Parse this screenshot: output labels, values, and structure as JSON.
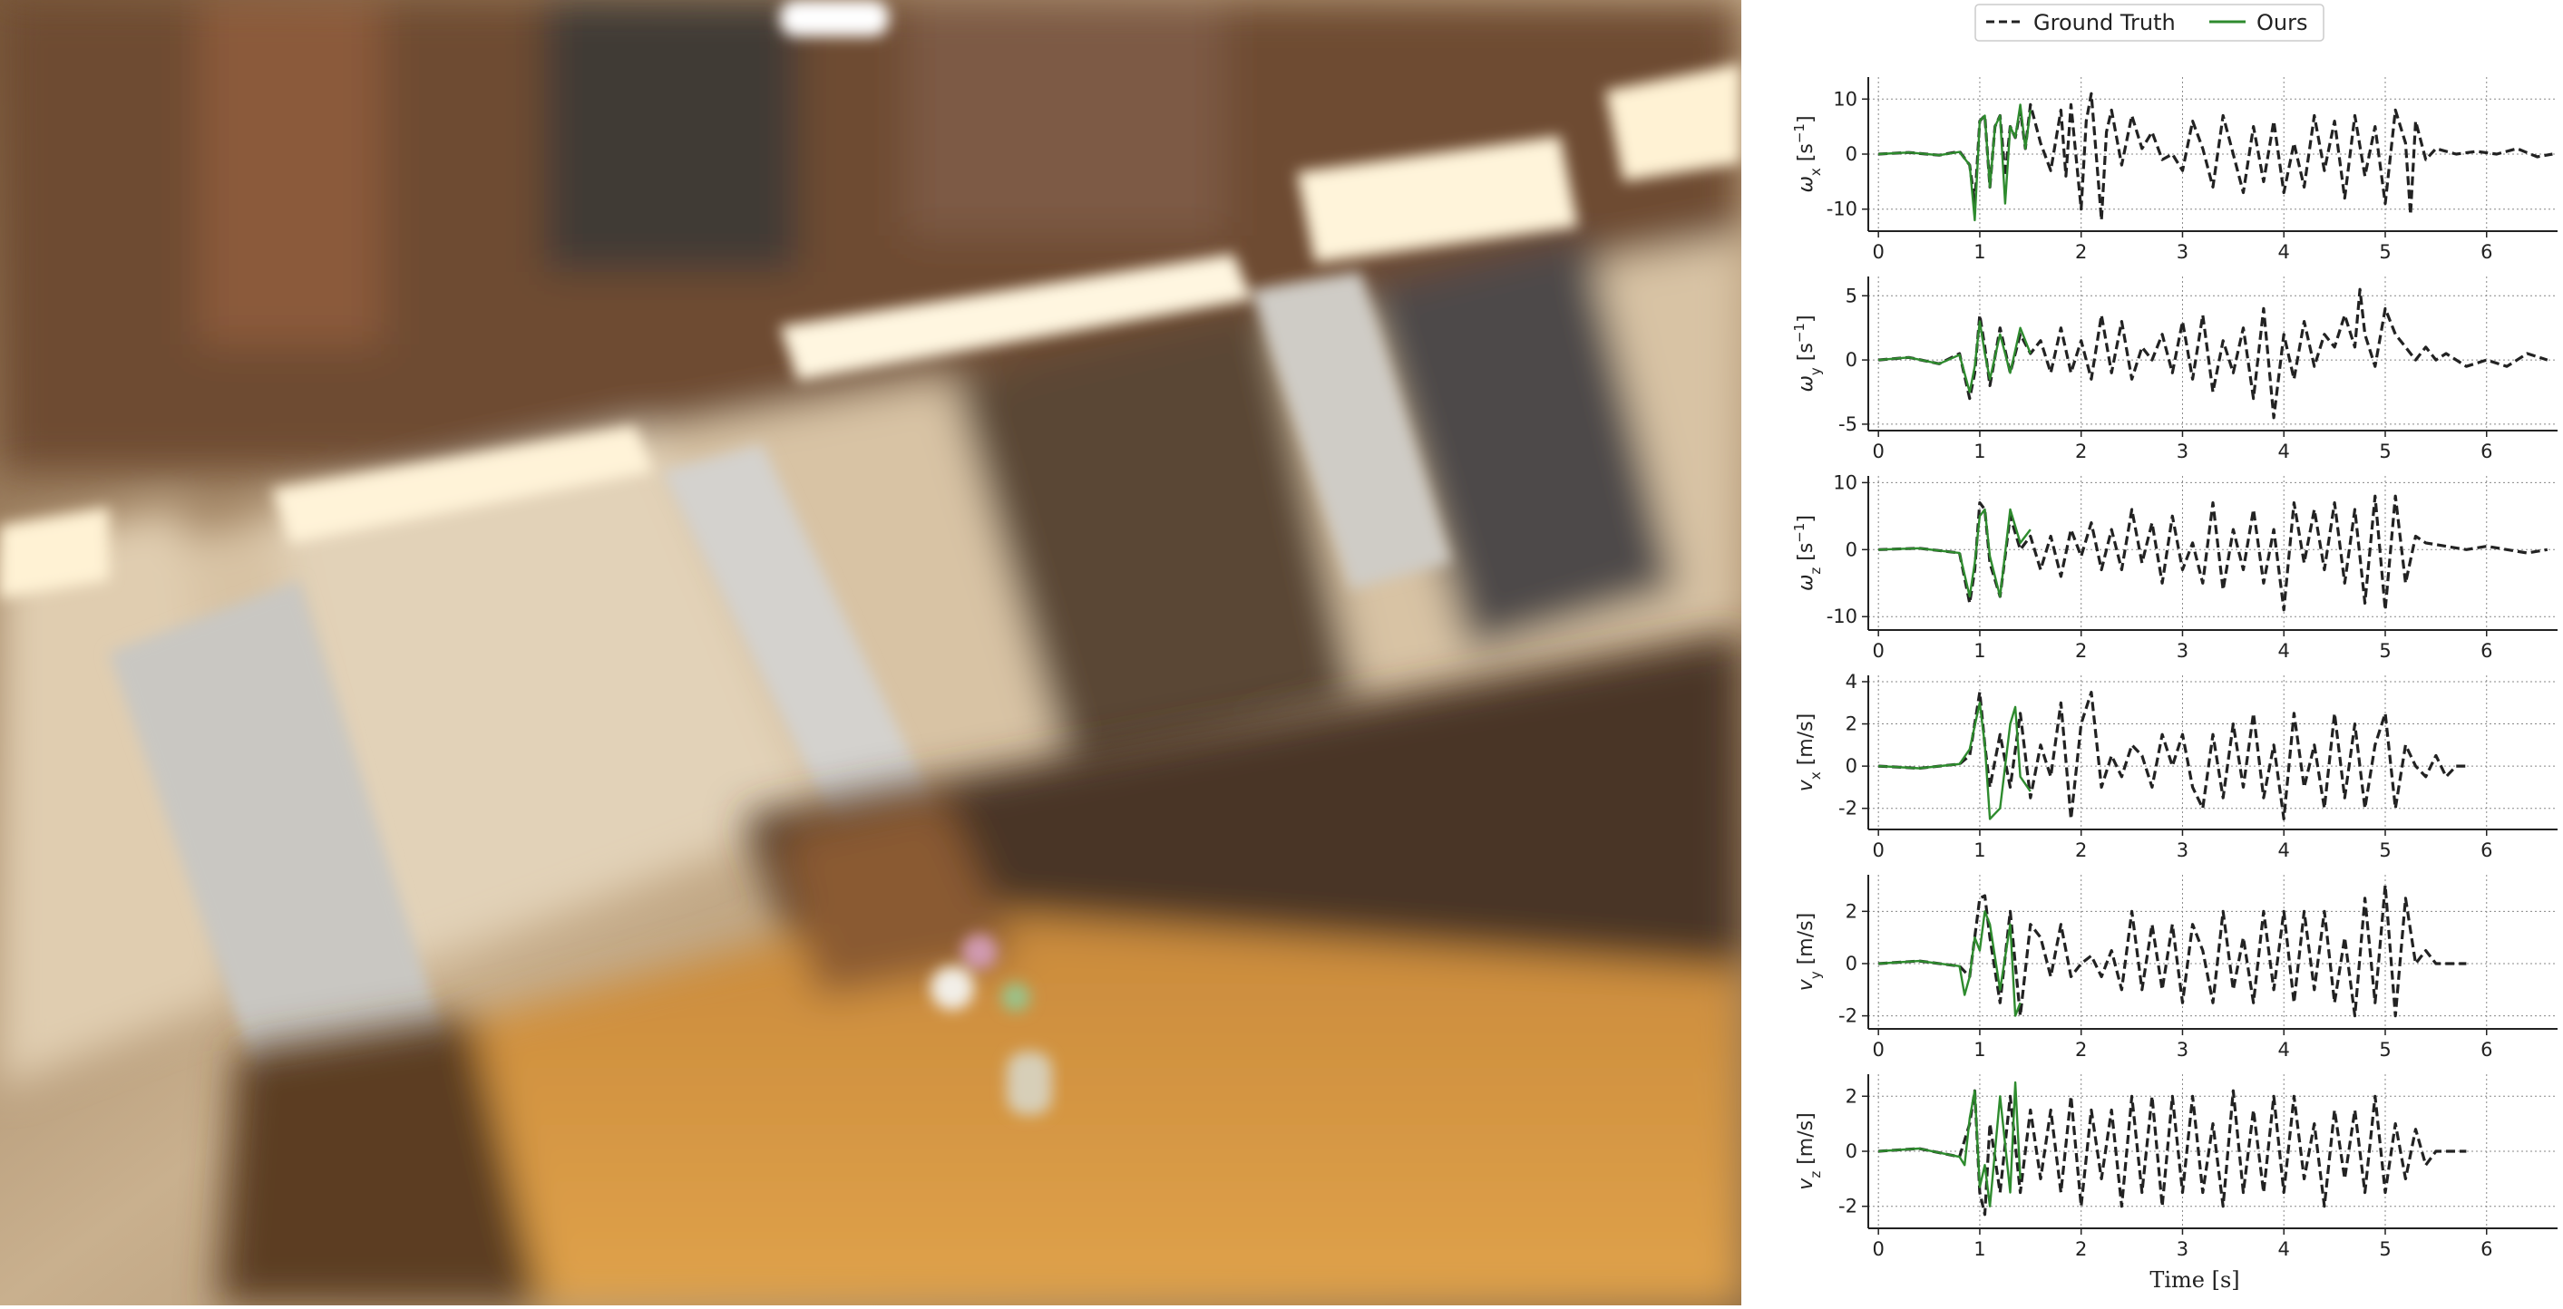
{
  "photo": {
    "description_icon": "blurred-restaurant-photo"
  },
  "legend": {
    "items": [
      {
        "label": "Ground Truth",
        "color": "#222222",
        "style": "dashed"
      },
      {
        "label": "Ours",
        "color": "#2e8b2e",
        "style": "solid"
      }
    ]
  },
  "xlabel": "Time [s]",
  "chart_data": [
    {
      "type": "line",
      "ylabel_symbol": "ω",
      "ylabel_sub": "x",
      "ylabel_unit": "[s",
      "ylabel_sup": "−1",
      "ylabel_close": "]",
      "ylim": [
        -14,
        14
      ],
      "yticks": [
        -10,
        0,
        10
      ],
      "xlim": [
        -0.1,
        6.7
      ],
      "xticks": [
        0,
        1,
        2,
        3,
        4,
        5,
        6
      ],
      "series": [
        {
          "name": "Ground Truth",
          "style": "dashed",
          "color": "#222222",
          "x": [
            0,
            0.3,
            0.6,
            0.8,
            0.9,
            0.95,
            1.0,
            1.05,
            1.1,
            1.15,
            1.2,
            1.25,
            1.3,
            1.35,
            1.4,
            1.45,
            1.5,
            1.6,
            1.7,
            1.8,
            1.85,
            1.9,
            2.0,
            2.05,
            2.1,
            2.2,
            2.25,
            2.3,
            2.4,
            2.5,
            2.6,
            2.7,
            2.8,
            2.9,
            3.0,
            3.1,
            3.2,
            3.3,
            3.4,
            3.5,
            3.6,
            3.7,
            3.8,
            3.9,
            4.0,
            4.1,
            4.2,
            4.3,
            4.4,
            4.5,
            4.6,
            4.7,
            4.8,
            4.9,
            5.0,
            5.1,
            5.2,
            5.25,
            5.3,
            5.4,
            5.5,
            5.7,
            5.9,
            6.1,
            6.3,
            6.5,
            6.65
          ],
          "y": [
            0,
            0.3,
            -0.2,
            0.5,
            -2,
            -9,
            6,
            7,
            -6,
            5,
            7,
            -4,
            5,
            3,
            8,
            1,
            9,
            2,
            -3,
            8,
            -4,
            9,
            -10,
            6,
            11,
            -12,
            4,
            8,
            -2,
            7,
            1,
            4,
            -1,
            0,
            -3,
            6,
            1,
            -6,
            7,
            0,
            -7,
            5,
            -5,
            6,
            -7,
            2,
            -6,
            7,
            -3,
            6,
            -8,
            7,
            -4,
            5,
            -9,
            8,
            2,
            -11,
            6,
            -1,
            1,
            0,
            0.5,
            0,
            1,
            -0.5,
            0
          ]
        },
        {
          "name": "Ours",
          "style": "solid",
          "color": "#2e8b2e",
          "x": [
            0,
            0.3,
            0.6,
            0.8,
            0.9,
            0.95,
            1.0,
            1.05,
            1.1,
            1.15,
            1.2,
            1.25,
            1.3,
            1.35,
            1.4,
            1.45,
            1.5
          ],
          "y": [
            0,
            0.3,
            -0.2,
            0.4,
            -2,
            -12,
            6,
            7,
            -6,
            5,
            7,
            -9,
            5,
            3,
            9,
            1,
            8
          ]
        }
      ]
    },
    {
      "type": "line",
      "ylabel_symbol": "ω",
      "ylabel_sub": "y",
      "ylabel_unit": "[s",
      "ylabel_sup": "−1",
      "ylabel_close": "]",
      "ylim": [
        -5.5,
        6.5
      ],
      "yticks": [
        -5,
        0,
        5
      ],
      "xlim": [
        -0.1,
        6.7
      ],
      "xticks": [
        0,
        1,
        2,
        3,
        4,
        5,
        6
      ],
      "series": [
        {
          "name": "Ground Truth",
          "style": "dashed",
          "color": "#222222",
          "x": [
            0,
            0.3,
            0.6,
            0.8,
            0.9,
            0.95,
            1.0,
            1.05,
            1.1,
            1.2,
            1.3,
            1.4,
            1.5,
            1.6,
            1.7,
            1.8,
            1.9,
            2.0,
            2.1,
            2.2,
            2.3,
            2.4,
            2.5,
            2.6,
            2.7,
            2.8,
            2.9,
            3.0,
            3.1,
            3.2,
            3.3,
            3.4,
            3.5,
            3.6,
            3.7,
            3.8,
            3.9,
            4.0,
            4.1,
            4.2,
            4.3,
            4.4,
            4.5,
            4.6,
            4.7,
            4.75,
            4.8,
            4.9,
            5.0,
            5.1,
            5.2,
            5.3,
            5.4,
            5.5,
            5.6,
            5.8,
            6.0,
            6.2,
            6.4,
            6.6
          ],
          "y": [
            0,
            0.2,
            -0.3,
            0.5,
            -3,
            -1,
            3.5,
            1,
            -2,
            2.5,
            -1,
            2,
            0.5,
            1.5,
            -1,
            2.5,
            -1,
            1.5,
            -1.5,
            3.5,
            -1,
            3,
            -1.5,
            1,
            0,
            2,
            -1,
            3,
            -1.5,
            3.5,
            -2.5,
            1.5,
            -1,
            2.5,
            -3,
            4,
            -4.5,
            2,
            -1.5,
            3,
            -0.5,
            2,
            1,
            3.5,
            1,
            5.5,
            2,
            -0.5,
            4,
            2,
            1,
            0,
            1,
            0,
            0.5,
            -0.5,
            0,
            -0.5,
            0.5,
            0
          ]
        },
        {
          "name": "Ours",
          "style": "solid",
          "color": "#2e8b2e",
          "x": [
            0,
            0.3,
            0.6,
            0.8,
            0.9,
            0.95,
            1.0,
            1.05,
            1.1,
            1.2,
            1.3,
            1.4,
            1.5
          ],
          "y": [
            0,
            0.2,
            -0.3,
            0.4,
            -2.5,
            -0.5,
            3,
            0.5,
            -1.5,
            2,
            -1,
            2.5,
            0.5
          ]
        }
      ]
    },
    {
      "type": "line",
      "ylabel_symbol": "ω",
      "ylabel_sub": "z",
      "ylabel_unit": "[s",
      "ylabel_sup": "−1",
      "ylabel_close": "]",
      "ylim": [
        -12,
        11
      ],
      "yticks": [
        -10,
        0,
        10
      ],
      "xlim": [
        -0.1,
        6.7
      ],
      "xticks": [
        0,
        1,
        2,
        3,
        4,
        5,
        6
      ],
      "series": [
        {
          "name": "Ground Truth",
          "style": "dashed",
          "color": "#222222",
          "x": [
            0,
            0.4,
            0.8,
            0.9,
            0.95,
            1.0,
            1.05,
            1.1,
            1.2,
            1.3,
            1.4,
            1.5,
            1.6,
            1.7,
            1.8,
            1.9,
            2.0,
            2.1,
            2.2,
            2.3,
            2.4,
            2.5,
            2.6,
            2.7,
            2.8,
            2.9,
            3.0,
            3.1,
            3.2,
            3.3,
            3.4,
            3.5,
            3.6,
            3.7,
            3.8,
            3.9,
            4.0,
            4.1,
            4.2,
            4.3,
            4.4,
            4.5,
            4.6,
            4.7,
            4.8,
            4.9,
            5.0,
            5.1,
            5.2,
            5.3,
            5.4,
            5.6,
            5.8,
            6.0,
            6.2,
            6.4,
            6.6
          ],
          "y": [
            0,
            0.2,
            -0.5,
            -8,
            -3,
            7,
            6,
            -2,
            -7,
            5,
            0,
            2,
            -3,
            2,
            -4,
            3,
            -1,
            4,
            -3,
            3,
            -3,
            6,
            -2,
            4,
            -5,
            5,
            -3,
            1,
            -5,
            7,
            -6,
            3,
            -3,
            6,
            -5,
            3,
            -9,
            7,
            -2,
            6,
            -3,
            7,
            -5,
            6,
            -8,
            8,
            -9,
            8,
            -5,
            2,
            1,
            0.5,
            0,
            0.5,
            0,
            -0.5,
            0
          ]
        },
        {
          "name": "Ours",
          "style": "solid",
          "color": "#2e8b2e",
          "x": [
            0,
            0.4,
            0.8,
            0.9,
            0.95,
            1.0,
            1.05,
            1.1,
            1.2,
            1.3,
            1.4,
            1.5
          ],
          "y": [
            0,
            0.2,
            -0.5,
            -7,
            -2,
            5,
            6,
            -1,
            -7,
            6,
            1,
            3
          ]
        }
      ]
    },
    {
      "type": "line",
      "ylabel_symbol": "v",
      "ylabel_sub": "x",
      "ylabel_unit": "[m/s]",
      "ylabel_sup": "",
      "ylabel_close": "",
      "ylim": [
        -3,
        4.3
      ],
      "yticks": [
        -2,
        0,
        2,
        4
      ],
      "xlim": [
        -0.1,
        6.7
      ],
      "xticks": [
        0,
        1,
        2,
        3,
        4,
        5,
        6
      ],
      "series": [
        {
          "name": "Ground Truth",
          "style": "dashed",
          "color": "#222222",
          "x": [
            0,
            0.4,
            0.8,
            0.9,
            1.0,
            1.05,
            1.1,
            1.2,
            1.3,
            1.4,
            1.5,
            1.6,
            1.7,
            1.8,
            1.9,
            2.0,
            2.1,
            2.2,
            2.3,
            2.4,
            2.5,
            2.6,
            2.7,
            2.8,
            2.9,
            3.0,
            3.1,
            3.2,
            3.3,
            3.4,
            3.5,
            3.6,
            3.7,
            3.8,
            3.9,
            4.0,
            4.1,
            4.2,
            4.3,
            4.4,
            4.5,
            4.6,
            4.7,
            4.8,
            4.9,
            5.0,
            5.1,
            5.2,
            5.3,
            5.4,
            5.5,
            5.6,
            5.7,
            5.8
          ],
          "y": [
            0,
            -0.1,
            0.1,
            0.5,
            3.5,
            1,
            -1,
            1.5,
            -1,
            2.5,
            -1.5,
            1,
            -0.5,
            3,
            -2.5,
            2,
            3.5,
            -1,
            0.5,
            -0.5,
            1,
            0.5,
            -1,
            1.5,
            0,
            1.5,
            -1,
            -2,
            1.5,
            -1.5,
            2,
            -1,
            2.5,
            -1.5,
            1,
            -2.5,
            2.5,
            -1,
            1,
            -2,
            2.5,
            -1.5,
            2,
            -2,
            1,
            2.5,
            -2,
            1,
            0,
            -0.5,
            0.5,
            -0.5,
            0,
            0
          ]
        },
        {
          "name": "Ours",
          "style": "solid",
          "color": "#2e8b2e",
          "x": [
            0,
            0.4,
            0.8,
            0.9,
            1.0,
            1.05,
            1.1,
            1.2,
            1.3,
            1.35,
            1.4,
            1.5
          ],
          "y": [
            0,
            -0.1,
            0.1,
            0.8,
            3,
            1,
            -2.5,
            -2,
            2,
            2.8,
            -0.5,
            -1.2
          ]
        }
      ]
    },
    {
      "type": "line",
      "ylabel_symbol": "v",
      "ylabel_sub": "y",
      "ylabel_unit": "[m/s]",
      "ylabel_sup": "",
      "ylabel_close": "",
      "ylim": [
        -2.5,
        3.4
      ],
      "yticks": [
        -2,
        0,
        2
      ],
      "xlim": [
        -0.1,
        6.7
      ],
      "xticks": [
        0,
        1,
        2,
        3,
        4,
        5,
        6
      ],
      "series": [
        {
          "name": "Ground Truth",
          "style": "dashed",
          "color": "#222222",
          "x": [
            0,
            0.4,
            0.8,
            0.9,
            1.0,
            1.05,
            1.1,
            1.2,
            1.3,
            1.4,
            1.5,
            1.6,
            1.7,
            1.8,
            1.9,
            2.0,
            2.1,
            2.2,
            2.3,
            2.4,
            2.5,
            2.6,
            2.7,
            2.8,
            2.9,
            3.0,
            3.1,
            3.2,
            3.3,
            3.4,
            3.5,
            3.6,
            3.7,
            3.8,
            3.9,
            4.0,
            4.1,
            4.2,
            4.3,
            4.4,
            4.5,
            4.6,
            4.7,
            4.8,
            4.9,
            5.0,
            5.1,
            5.2,
            5.3,
            5.4,
            5.5,
            5.6,
            5.7,
            5.8
          ],
          "y": [
            0,
            0.1,
            -0.1,
            -0.5,
            2.5,
            2.6,
            1,
            -1.5,
            2,
            -2,
            1.5,
            1,
            -0.5,
            1.5,
            -0.5,
            0,
            0.3,
            -0.5,
            0.5,
            -1,
            2,
            -1,
            1.5,
            -1,
            1.5,
            -1.5,
            1.5,
            0.5,
            -1.5,
            2,
            -1,
            1,
            -1.5,
            2,
            -1,
            2,
            -1.5,
            2,
            -1,
            2,
            -1.5,
            1,
            -2,
            2.5,
            -1.5,
            3,
            -2,
            2.5,
            0,
            0.5,
            0,
            0,
            0,
            0
          ]
        },
        {
          "name": "Ours",
          "style": "solid",
          "color": "#2e8b2e",
          "x": [
            0,
            0.4,
            0.8,
            0.85,
            0.9,
            0.95,
            1.0,
            1.05,
            1.1,
            1.2,
            1.3,
            1.35,
            1.4
          ],
          "y": [
            0,
            0.1,
            -0.1,
            -1.2,
            -0.5,
            1,
            0.5,
            2,
            1.5,
            -1,
            1.5,
            -2,
            -1.5
          ]
        }
      ]
    },
    {
      "type": "line",
      "ylabel_symbol": "v",
      "ylabel_sub": "z",
      "ylabel_unit": "[m/s]",
      "ylabel_sup": "",
      "ylabel_close": "",
      "ylim": [
        -2.8,
        2.8
      ],
      "yticks": [
        -2,
        0,
        2
      ],
      "xlim": [
        -0.1,
        6.7
      ],
      "xticks": [
        0,
        1,
        2,
        3,
        4,
        5,
        6
      ],
      "series": [
        {
          "name": "Ground Truth",
          "style": "dashed",
          "color": "#222222",
          "x": [
            0,
            0.4,
            0.8,
            0.9,
            0.95,
            1.0,
            1.05,
            1.1,
            1.2,
            1.3,
            1.4,
            1.5,
            1.6,
            1.7,
            1.8,
            1.9,
            2.0,
            2.1,
            2.2,
            2.3,
            2.4,
            2.5,
            2.6,
            2.7,
            2.8,
            2.9,
            3.0,
            3.1,
            3.2,
            3.3,
            3.4,
            3.5,
            3.6,
            3.7,
            3.8,
            3.9,
            4.0,
            4.1,
            4.2,
            4.3,
            4.4,
            4.5,
            4.6,
            4.7,
            4.8,
            4.9,
            5.0,
            5.1,
            5.2,
            5.3,
            5.4,
            5.5,
            5.6,
            5.7,
            5.8
          ],
          "y": [
            0,
            0.1,
            -0.2,
            1,
            2.2,
            -1.5,
            -2.3,
            1,
            -1.5,
            2,
            -1.5,
            1.5,
            -1,
            1.5,
            -1.5,
            2,
            -2,
            1.5,
            -1,
            1.5,
            -2,
            2,
            -1.5,
            2,
            -2,
            2,
            -1.5,
            2,
            -1.5,
            1,
            -2,
            2.2,
            -1.5,
            1.5,
            -1.5,
            2,
            -1.5,
            2,
            -1,
            1,
            -2,
            1.5,
            -1,
            1.5,
            -1.5,
            2,
            -1.5,
            1,
            -1,
            0.8,
            -0.5,
            0,
            0,
            0,
            0
          ]
        },
        {
          "name": "Ours",
          "style": "solid",
          "color": "#2e8b2e",
          "x": [
            0,
            0.4,
            0.8,
            0.85,
            0.9,
            0.95,
            1.0,
            1.05,
            1.1,
            1.2,
            1.3,
            1.35,
            1.4
          ],
          "y": [
            0,
            0.1,
            -0.2,
            -0.5,
            1.2,
            2.2,
            -1.3,
            -0.5,
            -2,
            2,
            -1.5,
            2.5,
            -1
          ]
        }
      ]
    }
  ]
}
